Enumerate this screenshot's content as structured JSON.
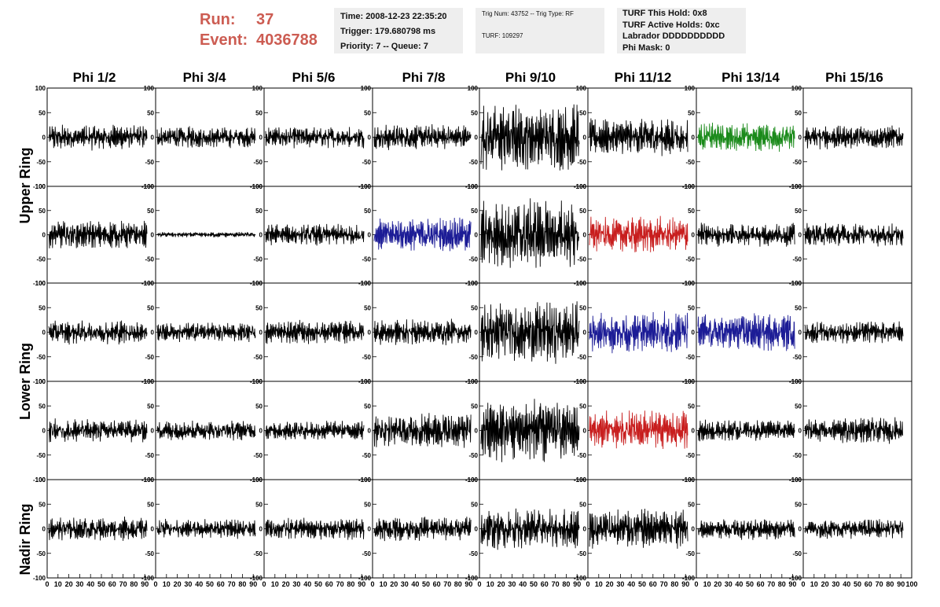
{
  "run": {
    "run_label": "Run:",
    "run_value": "37",
    "event_label": "Event:",
    "event_value": "4036788"
  },
  "info_boxes": {
    "box1": [
      "Time: 2008-12-23 22:35:20",
      "Trigger: 179.680798 ms",
      "Priority: 7 -- Queue: 7"
    ],
    "box2": [
      "Trig Num: 43752 -- Trig Type: RF",
      "TURF: 109297"
    ],
    "box3": [
      "TURF This Hold: 0x8",
      "TURF Active Holds: 0xc",
      "Labrador DDDDDDDDDD",
      "Phi Mask: 0"
    ]
  },
  "colors": {
    "default": "#000000",
    "green": "#1a8a1a",
    "blue": "#1c1c96",
    "red": "#c81e1e"
  },
  "chart_data": {
    "type": "line",
    "columns": [
      "Phi 1/2",
      "Phi 3/4",
      "Phi 5/6",
      "Phi 7/8",
      "Phi 9/10",
      "Phi 11/12",
      "Phi 13/14",
      "Phi 15/16"
    ],
    "ring_labels": [
      "Upper Ring",
      "Lower Ring",
      "Nadir Ring"
    ],
    "ylim": [
      -100,
      100
    ],
    "xlim": [
      0,
      100
    ],
    "y_ticks": [
      100,
      50,
      0,
      -50,
      -100
    ],
    "x_ticks": [
      0,
      10,
      20,
      30,
      40,
      50,
      60,
      70,
      80,
      90,
      100
    ],
    "samples": 260,
    "rows": [
      {
        "amps": [
          24,
          20,
          20,
          24,
          62,
          34,
          26,
          22
        ],
        "colors": [
          "default",
          "default",
          "default",
          "default",
          "default",
          "default",
          "green",
          "default"
        ]
      },
      {
        "amps": [
          26,
          5,
          20,
          32,
          66,
          34,
          22,
          22
        ],
        "colors": [
          "default",
          "default",
          "default",
          "blue",
          "default",
          "red",
          "default",
          "default"
        ]
      },
      {
        "amps": [
          22,
          18,
          22,
          24,
          56,
          40,
          34,
          20
        ],
        "colors": [
          "default",
          "default",
          "default",
          "default",
          "default",
          "blue",
          "blue",
          "default"
        ]
      },
      {
        "amps": [
          22,
          18,
          18,
          32,
          60,
          36,
          20,
          24
        ],
        "colors": [
          "default",
          "default",
          "default",
          "default",
          "default",
          "red",
          "default",
          "default"
        ]
      },
      {
        "amps": [
          22,
          18,
          20,
          22,
          38,
          36,
          20,
          18
        ],
        "colors": [
          "default",
          "default",
          "default",
          "default",
          "default",
          "default",
          "default",
          "default"
        ]
      }
    ]
  }
}
